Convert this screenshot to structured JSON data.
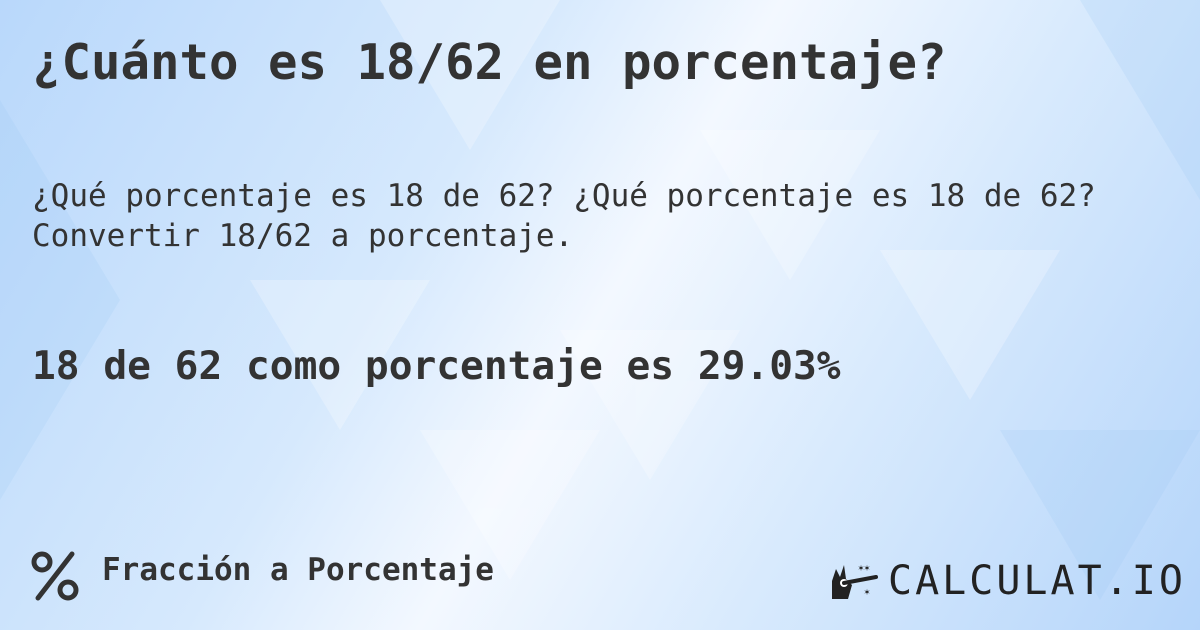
{
  "title": "¿Cuánto es 18/62 en porcentaje?",
  "description": "¿Qué porcentaje es 18 de 62? ¿Qué porcentaje es 18 de 62? Convertir 18/62 a porcentaje.",
  "result": "18 de 62 como porcentaje es 29.03%",
  "footer": {
    "category_icon": "percent-icon",
    "category": "Fracción a Porcentaje",
    "logo_text": "CALCULAT.IO",
    "logo_icon": "magic-wand-hand-icon"
  }
}
